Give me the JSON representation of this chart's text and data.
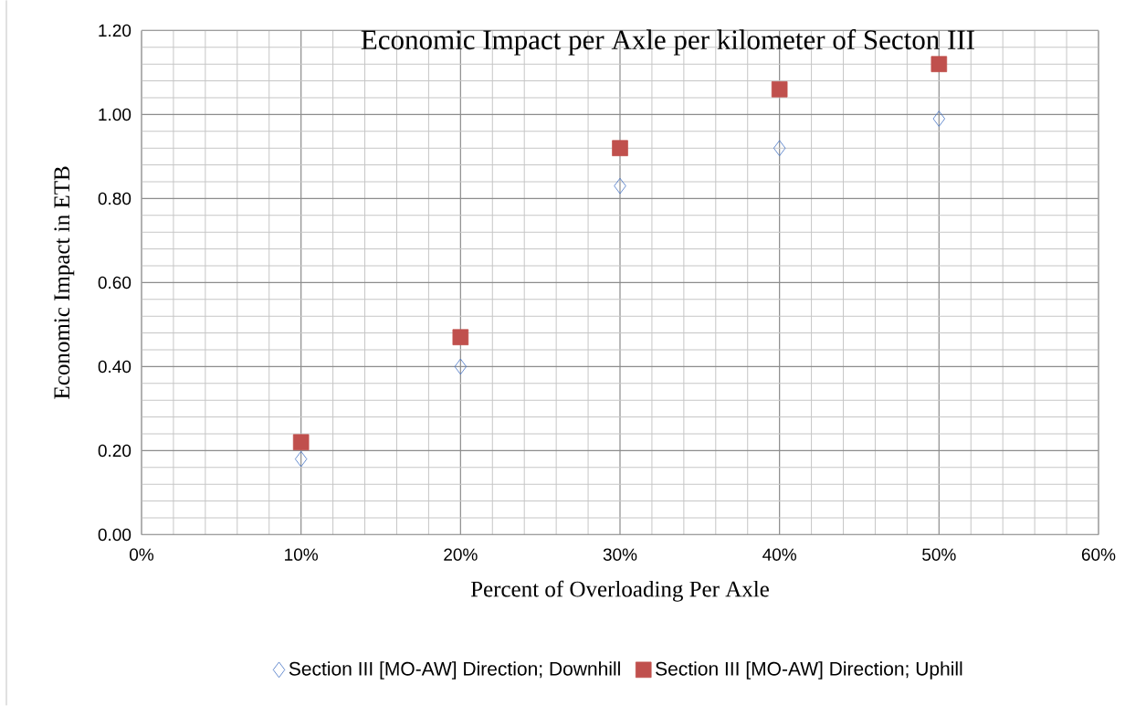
{
  "chart_data": {
    "type": "scatter",
    "title": "Economic Impact per Axle per kilometer of Secton III",
    "xlabel": "Percent of Overloading Per Axle",
    "ylabel": "Economic Impact in ETB",
    "x": [
      0.1,
      0.2,
      0.3,
      0.4,
      0.5
    ],
    "series": [
      {
        "name": "Section III [MO-AW] Direction; Downhill",
        "color": "#4472c4",
        "marker": "diamond",
        "values": [
          0.18,
          0.4,
          0.83,
          0.92,
          0.99
        ]
      },
      {
        "name": "Section III [MO-AW] Direction; Uphill",
        "color": "#c0504d",
        "marker": "square",
        "values": [
          0.22,
          0.47,
          0.92,
          1.06,
          1.12
        ]
      }
    ],
    "xlim": [
      0,
      0.6
    ],
    "ylim": [
      0,
      1.2
    ],
    "xticks": [
      {
        "value": 0,
        "label": "0%"
      },
      {
        "value": 0.1,
        "label": "10%"
      },
      {
        "value": 0.2,
        "label": "20%"
      },
      {
        "value": 0.3,
        "label": "30%"
      },
      {
        "value": 0.4,
        "label": "40%"
      },
      {
        "value": 0.5,
        "label": "50%"
      },
      {
        "value": 0.6,
        "label": "60%"
      }
    ],
    "yticks": [
      {
        "value": 0,
        "label": "0.00"
      },
      {
        "value": 0.2,
        "label": "0.20"
      },
      {
        "value": 0.4,
        "label": "0.40"
      },
      {
        "value": 0.6,
        "label": "0.60"
      },
      {
        "value": 0.8,
        "label": "0.80"
      },
      {
        "value": 1.0,
        "label": "1.00"
      },
      {
        "value": 1.2,
        "label": "1.20"
      }
    ],
    "grid": true,
    "legend": "bottom"
  }
}
